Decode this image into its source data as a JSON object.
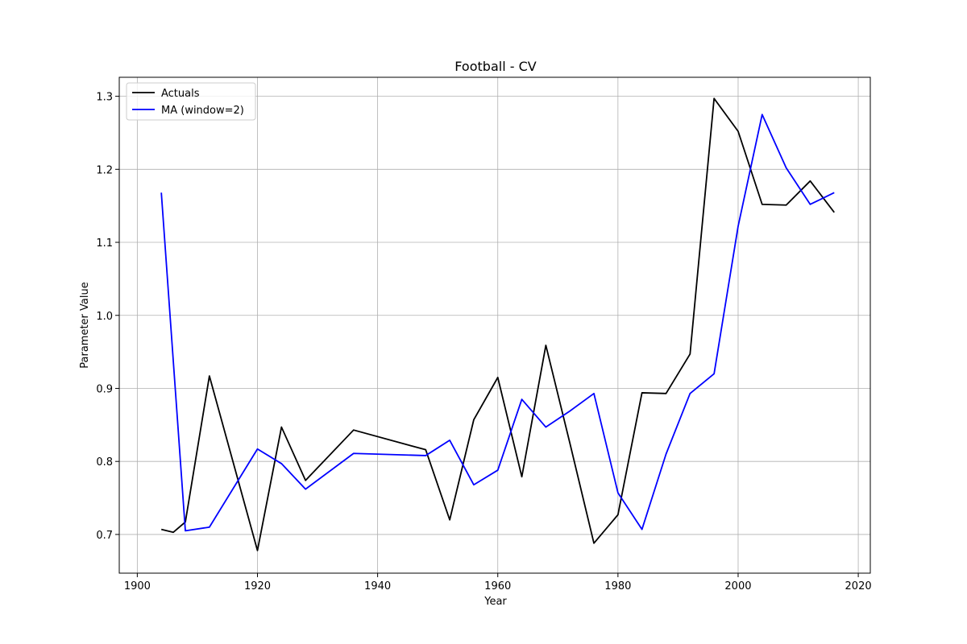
{
  "chart_data": {
    "type": "line",
    "title": "Football - CV",
    "xlabel": "Year",
    "ylabel": "Parameter Value",
    "xlim": [
      1897,
      2022
    ],
    "ylim": [
      0.647,
      1.326
    ],
    "xticks": [
      1900,
      1920,
      1940,
      1960,
      1980,
      2000,
      2020
    ],
    "yticks": [
      0.7,
      0.8,
      0.9,
      1.0,
      1.1,
      1.2,
      1.3
    ],
    "grid": true,
    "legend_position": "upper-left",
    "x": [
      1904,
      1906,
      1908,
      1912,
      1920,
      1924,
      1928,
      1936,
      1948,
      1952,
      1956,
      1960,
      1964,
      1968,
      1972,
      1976,
      1980,
      1984,
      1988,
      1992,
      1996,
      2000,
      2004,
      2008,
      2012,
      2016
    ],
    "series": [
      {
        "name": "Actuals",
        "color": "#000000",
        "values": [
          0.707,
          0.703,
          0.717,
          0.917,
          0.678,
          0.847,
          0.774,
          0.843,
          0.816,
          0.72,
          0.857,
          0.915,
          0.779,
          0.959,
          0.825,
          0.688,
          0.727,
          0.894,
          0.893,
          0.947,
          1.297,
          1.252,
          1.152,
          1.151,
          1.184,
          1.141
        ]
      },
      {
        "name": "MA (window=2)",
        "color": "#0000ff",
        "values": [
          1.168,
          null,
          0.705,
          0.71,
          0.817,
          0.797,
          0.762,
          0.811,
          0.808,
          0.829,
          0.768,
          0.788,
          0.885,
          0.847,
          0.869,
          0.893,
          0.757,
          0.707,
          0.81,
          0.893,
          0.92,
          1.122,
          1.275,
          1.202,
          1.152,
          1.168
        ]
      }
    ]
  }
}
